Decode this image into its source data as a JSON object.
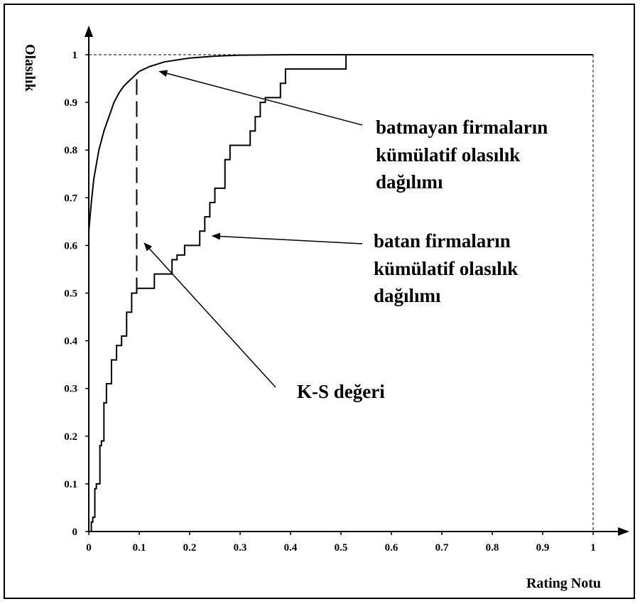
{
  "chart_data": {
    "type": "line",
    "xlabel": "Rating Notu",
    "ylabel": "Olasılık",
    "xlim": [
      0,
      1
    ],
    "ylim": [
      0,
      1
    ],
    "x_ticks": [
      "0",
      "0.1",
      "0.2",
      "0.3",
      "0.4",
      "0.5",
      "0.6",
      "0.7",
      "0.8",
      "0.9",
      "1"
    ],
    "y_ticks": [
      "0",
      "0.1",
      "0.2",
      "0.3",
      "0.4",
      "0.5",
      "0.6",
      "0.7",
      "0.8",
      "0.9",
      "1"
    ],
    "grid": false,
    "series": [
      {
        "id": "batmayan",
        "style": "smooth",
        "color": "#000000",
        "x": [
          0,
          0.005,
          0.01,
          0.02,
          0.03,
          0.04,
          0.05,
          0.06,
          0.07,
          0.08,
          0.09,
          0.1,
          0.12,
          0.15,
          0.2,
          0.25,
          0.3,
          0.4,
          0.5,
          0.6,
          0.8,
          1.0
        ],
        "y": [
          0.63,
          0.69,
          0.74,
          0.8,
          0.84,
          0.87,
          0.9,
          0.92,
          0.935,
          0.945,
          0.955,
          0.965,
          0.975,
          0.985,
          0.993,
          0.997,
          0.999,
          1.0,
          1.0,
          1.0,
          1.0,
          1.0
        ]
      },
      {
        "id": "batan",
        "style": "step",
        "color": "#000000",
        "x": [
          0,
          0.005,
          0.008,
          0.012,
          0.015,
          0.022,
          0.025,
          0.03,
          0.035,
          0.045,
          0.055,
          0.065,
          0.075,
          0.085,
          0.095,
          0.105,
          0.13,
          0.165,
          0.175,
          0.19,
          0.2,
          0.22,
          0.23,
          0.24,
          0.25,
          0.27,
          0.28,
          0.3,
          0.32,
          0.33,
          0.34,
          0.35,
          0.38,
          0.39,
          0.4,
          0.45,
          0.51
        ],
        "y": [
          0,
          0.02,
          0.03,
          0.09,
          0.1,
          0.18,
          0.19,
          0.27,
          0.31,
          0.36,
          0.39,
          0.41,
          0.46,
          0.5,
          0.51,
          0.51,
          0.54,
          0.57,
          0.58,
          0.6,
          0.6,
          0.63,
          0.66,
          0.69,
          0.72,
          0.78,
          0.81,
          0.81,
          0.84,
          0.87,
          0.9,
          0.91,
          0.94,
          0.97,
          0.97,
          0.97,
          1.0
        ]
      }
    ],
    "ks_line": {
      "x": 0.095,
      "y_from": 0.5,
      "y_to": 0.955
    },
    "annotations": [
      {
        "id": "batmayan",
        "lines": [
          "batmayan firmaların",
          "kümülatif olasılık",
          "dağılımı"
        ],
        "arrow_to": [
          0.14,
          0.965
        ]
      },
      {
        "id": "batan",
        "lines": [
          "batan firmaların",
          "kümülatif olasılık",
          "dağılımı"
        ],
        "arrow_to": [
          0.245,
          0.62
        ]
      },
      {
        "id": "ks",
        "lines": [
          "K-S değeri"
        ],
        "arrow_to": [
          0.11,
          0.605
        ]
      }
    ]
  }
}
